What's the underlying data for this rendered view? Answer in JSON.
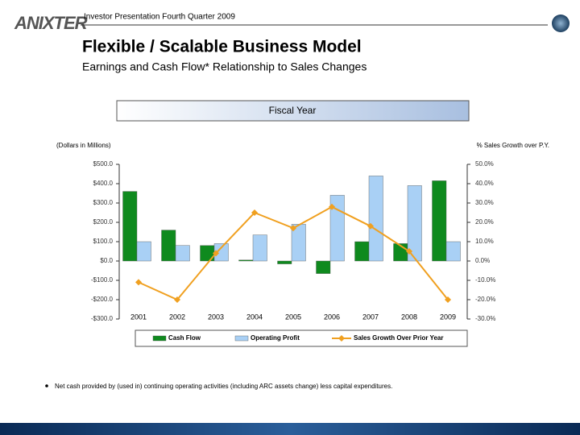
{
  "header": {
    "logo": "ANIXTER",
    "title": "Investor Presentation Fourth Quarter 2009"
  },
  "title": "Flexible / Scalable Business Model",
  "subtitle": "Earnings and Cash Flow* Relationship to Sales Changes",
  "footnote": "Net cash provided by (used in) continuing operating activities (including ARC assets change) less capital expenditures.",
  "chart_data": {
    "type": "bar",
    "title": "Fiscal Year",
    "y_label": "(Dollars in Millions)",
    "y2_label": "% Sales Growth over P.Y.",
    "categories": [
      "2001",
      "2002",
      "2003",
      "2004",
      "2005",
      "2006",
      "2007",
      "2008",
      "2009"
    ],
    "series": [
      {
        "name": "Cash Flow",
        "type": "bar",
        "color": "#0f8a1e",
        "values": [
          360,
          160,
          80,
          5,
          -15,
          -65,
          100,
          90,
          415
        ]
      },
      {
        "name": "Operating Profit",
        "type": "bar",
        "color": "#a9d0f5",
        "values": [
          100,
          80,
          90,
          135,
          190,
          340,
          440,
          390,
          100
        ]
      },
      {
        "name": "Sales Growth Over Prior Year",
        "type": "line",
        "axis": "y2",
        "color": "#f0a020",
        "values": [
          -11,
          -20,
          4,
          25,
          17,
          28,
          18,
          5,
          -20
        ]
      }
    ],
    "ylim": [
      -300,
      500
    ],
    "yticks": [
      {
        "value": 500,
        "label": "$500.0"
      },
      {
        "value": 400,
        "label": "$400.0"
      },
      {
        "value": 300,
        "label": "$300.0"
      },
      {
        "value": 200,
        "label": "$200.0"
      },
      {
        "value": 100,
        "label": "$100.0"
      },
      {
        "value": 0,
        "label": "$0.0"
      },
      {
        "value": -100,
        "label": "-$100.0"
      },
      {
        "value": -200,
        "label": "-$200.0"
      },
      {
        "value": -300,
        "label": "-$300.0"
      }
    ],
    "y2lim": [
      -30,
      50
    ],
    "y2ticks": [
      {
        "value": 50,
        "label": "50.0%"
      },
      {
        "value": 40,
        "label": "40.0%"
      },
      {
        "value": 30,
        "label": "30.0%"
      },
      {
        "value": 20,
        "label": "20.0%"
      },
      {
        "value": 10,
        "label": "10.0%"
      },
      {
        "value": 0,
        "label": "0.0%"
      },
      {
        "value": -10,
        "label": "-10.0%"
      },
      {
        "value": -20,
        "label": "-20.0%"
      },
      {
        "value": -30,
        "label": "-30.0%"
      }
    ],
    "legend": "bottom"
  }
}
